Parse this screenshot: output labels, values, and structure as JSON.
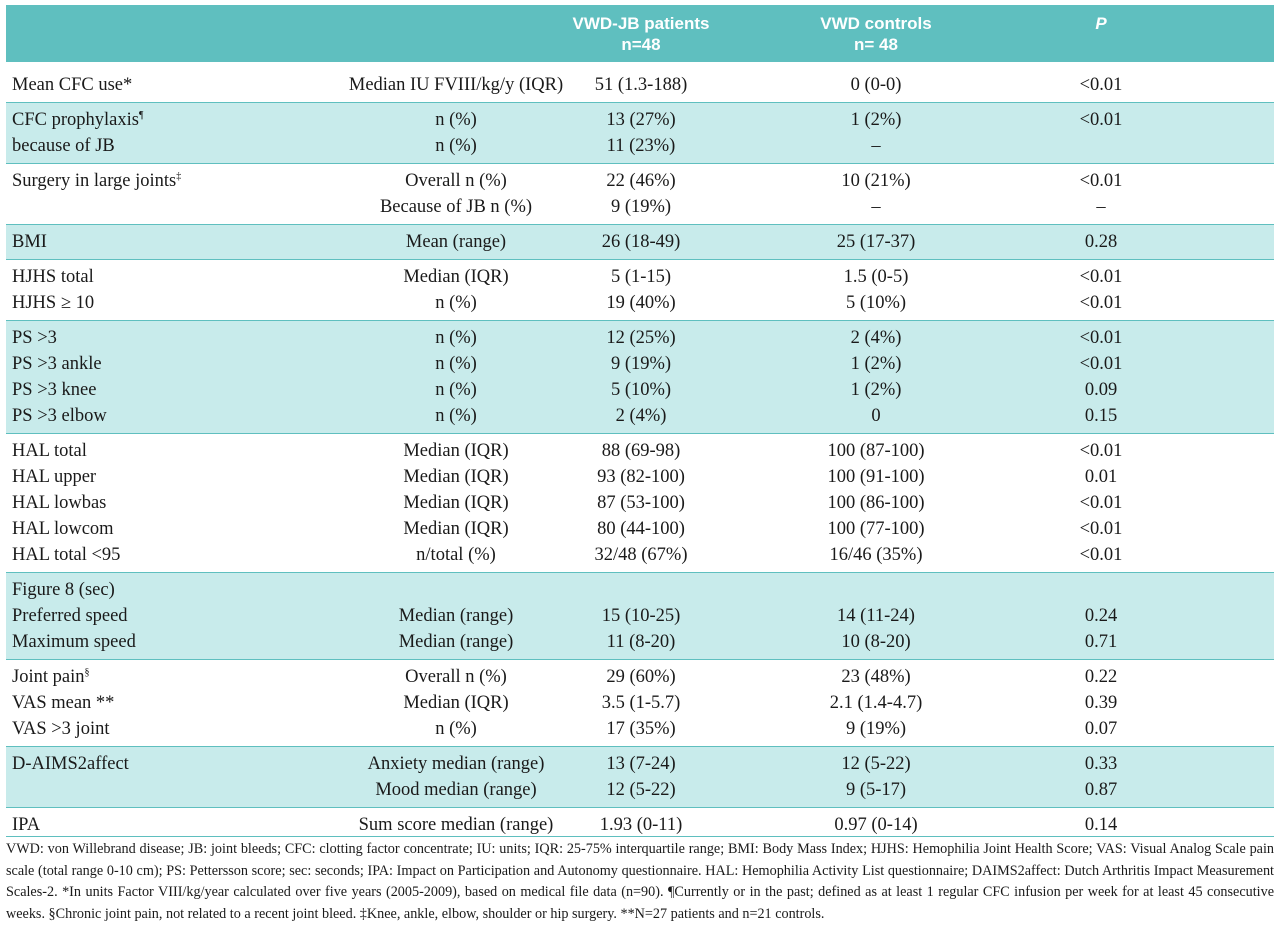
{
  "header": {
    "col_patients": [
      "VWD-JB patients",
      "n=48"
    ],
    "col_controls": [
      "VWD controls",
      "n= 48"
    ],
    "col_p": "P"
  },
  "groups": [
    {
      "rows": [
        [
          "Mean CFC use*",
          "Median IU FVIII/kg/y (IQR)",
          "51 (1.3-188)",
          "0 (0-0)",
          "<0.01"
        ]
      ]
    },
    {
      "rows": [
        [
          "CFC prophylaxis¶",
          "n (%)",
          "13 (27%)",
          "1 (2%)",
          "<0.01"
        ],
        [
          "because of JB",
          "n (%)",
          "11 (23%)",
          "–",
          ""
        ]
      ]
    },
    {
      "rows": [
        [
          "Surgery in large joints‡",
          "Overall n (%)",
          "22 (46%)",
          "10 (21%)",
          "<0.01"
        ],
        [
          "",
          "Because of JB n (%)",
          "9 (19%)",
          "–",
          "–"
        ]
      ]
    },
    {
      "rows": [
        [
          "BMI",
          "Mean (range)",
          "26 (18-49)",
          "25 (17-37)",
          "0.28"
        ]
      ]
    },
    {
      "rows": [
        [
          "HJHS total",
          "Median (IQR)",
          "5 (1-15)",
          "1.5 (0-5)",
          "<0.01"
        ],
        [
          "HJHS ≥ 10",
          "n (%)",
          "19 (40%)",
          "5 (10%)",
          "<0.01"
        ]
      ]
    },
    {
      "rows": [
        [
          "PS >3",
          "n (%)",
          "12 (25%)",
          "2 (4%)",
          "<0.01"
        ],
        [
          "PS >3 ankle",
          "n (%)",
          "9 (19%)",
          "1 (2%)",
          "<0.01"
        ],
        [
          "PS >3 knee",
          "n (%)",
          "5 (10%)",
          "1 (2%)",
          "0.09"
        ],
        [
          "PS >3 elbow",
          "n (%)",
          "2 (4%)",
          "0",
          "0.15"
        ]
      ]
    },
    {
      "rows": [
        [
          "HAL total",
          "Median (IQR)",
          "88 (69-98)",
          "100 (87-100)",
          "<0.01"
        ],
        [
          "HAL upper",
          "Median (IQR)",
          "93 (82-100)",
          "100 (91-100)",
          "0.01"
        ],
        [
          "HAL lowbas",
          "Median (IQR)",
          "87 (53-100)",
          "100 (86-100)",
          "<0.01"
        ],
        [
          "HAL lowcom",
          "Median (IQR)",
          "80 (44-100)",
          "100 (77-100)",
          "<0.01"
        ],
        [
          "HAL total <95",
          "n/total (%)",
          "32/48 (67%)",
          "16/46 (35%)",
          "<0.01"
        ]
      ]
    },
    {
      "rows": [
        [
          "Figure 8 (sec)",
          "",
          "",
          "",
          ""
        ],
        [
          "Preferred speed",
          "Median (range)",
          "15 (10-25)",
          "14 (11-24)",
          "0.24"
        ],
        [
          "Maximum speed",
          "Median (range)",
          "11 (8-20)",
          "10 (8-20)",
          "0.71"
        ]
      ]
    },
    {
      "rows": [
        [
          "Joint pain§",
          "Overall n (%)",
          "29 (60%)",
          "23 (48%)",
          "0.22"
        ],
        [
          "VAS mean **",
          "Median (IQR)",
          "3.5 (1-5.7)",
          "2.1 (1.4-4.7)",
          "0.39"
        ],
        [
          "VAS >3 joint",
          "n (%)",
          "17 (35%)",
          "9 (19%)",
          "0.07"
        ]
      ]
    },
    {
      "rows": [
        [
          "D-AIMS2affect",
          "Anxiety median (range)",
          "13 (7-24)",
          "12 (5-22)",
          "0.33"
        ],
        [
          "",
          "Mood median (range)",
          "12 (5-22)",
          "9 (5-17)",
          "0.87"
        ]
      ]
    },
    {
      "rows": [
        [
          "IPA",
          "Sum score median (range)",
          "1.93 (0-11)",
          "0.97 (0-14)",
          "0.14"
        ]
      ]
    }
  ],
  "footnote": "VWD: von Willebrand disease; JB: joint bleeds; CFC: clotting factor concentrate; IU: units; IQR: 25-75% interquartile range; BMI: Body Mass Index; HJHS: Hemophilia Joint Health Score; VAS: Visual Analog Scale pain scale (total range 0-10 cm); PS: Pettersson score; sec: seconds; IPA: Impact on Participation and Autonomy questionnaire. HAL: Hemophilia Activity List questionnaire; DAIMS2affect: Dutch Arthritis Impact Measurement Scales-2. *In units Factor VIII/kg/year calculated over five years (2005-2009), based on medical file data (n=90). ¶Currently or in the past; defined as at least 1 regular CFC infusion per week for at least 45 consecutive weeks. §Chronic joint pain, not related to a recent joint bleed. ‡Knee, ankle, elbow, shoulder or hip surgery. **N=27 patients and n=21 controls.",
  "colors": {
    "header": "#5fbfbf",
    "shade": "#c8ebeb"
  }
}
